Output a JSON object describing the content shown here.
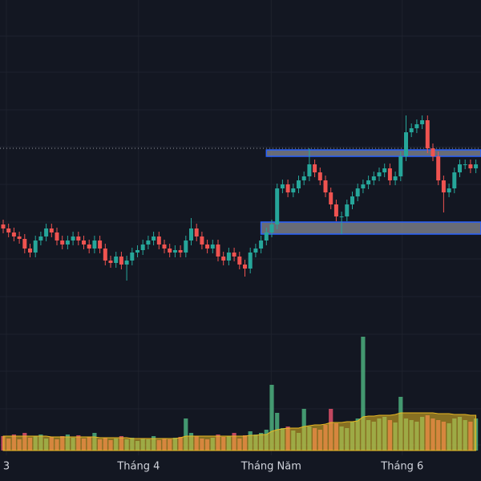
{
  "chart_data": {
    "type": "candlestick",
    "up_color": "#26a69a",
    "down_color": "#ef5350",
    "volume_up_color": "#4caf7e",
    "volume_down_color": "#e0506a",
    "volume_ma_color": "#e8b923",
    "zone_color": "#787b86",
    "zone_border_color": "#2962ff",
    "price_line_color": "#9598a1",
    "grid": true,
    "ylim": [
      0,
      600
    ],
    "yticks": [
      555,
      510,
      463,
      417,
      370,
      323,
      277,
      230,
      183,
      137,
      90,
      45
    ],
    "vlim": [
      0,
      200
    ],
    "x_labels": [
      {
        "index": 0.6,
        "label": "3"
      },
      {
        "index": 25.2,
        "label": "Tháng 4"
      },
      {
        "index": 49.9,
        "label": "Tháng Năm"
      },
      {
        "index": 74.3,
        "label": "Tháng 6"
      }
    ],
    "open": [
      320,
      315,
      310,
      305,
      302,
      290,
      285,
      300,
      305,
      315,
      310,
      300,
      295,
      300,
      305,
      300,
      295,
      290,
      300,
      290,
      275,
      272,
      280,
      270,
      275,
      285,
      288,
      295,
      300,
      305,
      295,
      290,
      285,
      288,
      285,
      300,
      315,
      305,
      295,
      290,
      295,
      280,
      275,
      285,
      280,
      270,
      265,
      285,
      290,
      300,
      310,
      320,
      365,
      370,
      360,
      365,
      375,
      380,
      395,
      385,
      375,
      360,
      345,
      330,
      330,
      345,
      355,
      365,
      370,
      375,
      380,
      385,
      390,
      375,
      380,
      405,
      435,
      440,
      445,
      450,
      415,
      405,
      375,
      360,
      365,
      385,
      395,
      395,
      390
    ],
    "high": [
      326,
      321,
      316,
      311,
      308,
      296,
      306,
      311,
      321,
      321,
      316,
      306,
      306,
      311,
      311,
      306,
      301,
      306,
      306,
      296,
      281,
      286,
      286,
      281,
      291,
      294,
      301,
      306,
      311,
      311,
      301,
      296,
      294,
      294,
      306,
      328,
      321,
      311,
      301,
      301,
      301,
      286,
      291,
      291,
      286,
      276,
      291,
      296,
      306,
      316,
      326,
      371,
      376,
      376,
      371,
      381,
      386,
      415,
      401,
      391,
      381,
      366,
      351,
      336,
      351,
      361,
      371,
      376,
      381,
      386,
      391,
      396,
      396,
      386,
      411,
      456,
      446,
      451,
      456,
      456,
      421,
      411,
      381,
      371,
      391,
      401,
      401,
      401,
      401
    ],
    "low": [
      309,
      304,
      299,
      296,
      284,
      279,
      279,
      294,
      299,
      304,
      294,
      289,
      289,
      294,
      294,
      289,
      284,
      284,
      284,
      269,
      266,
      266,
      264,
      250,
      269,
      279,
      282,
      289,
      294,
      289,
      284,
      279,
      279,
      279,
      279,
      294,
      299,
      289,
      284,
      284,
      274,
      269,
      269,
      274,
      264,
      255,
      259,
      279,
      284,
      294,
      304,
      314,
      359,
      354,
      354,
      359,
      369,
      374,
      379,
      369,
      354,
      339,
      324,
      308,
      324,
      339,
      349,
      359,
      364,
      369,
      374,
      379,
      369,
      369,
      374,
      399,
      429,
      434,
      439,
      409,
      399,
      369,
      335,
      354,
      359,
      379,
      389,
      384,
      384
    ],
    "close": [
      315,
      310,
      305,
      302,
      290,
      285,
      300,
      305,
      315,
      310,
      300,
      295,
      300,
      305,
      300,
      295,
      290,
      300,
      290,
      275,
      272,
      280,
      270,
      275,
      285,
      288,
      295,
      300,
      305,
      295,
      290,
      285,
      288,
      285,
      300,
      315,
      305,
      295,
      290,
      295,
      280,
      275,
      285,
      280,
      270,
      265,
      285,
      290,
      300,
      310,
      320,
      365,
      370,
      360,
      365,
      375,
      380,
      395,
      385,
      375,
      360,
      345,
      330,
      330,
      345,
      355,
      365,
      370,
      375,
      380,
      385,
      390,
      375,
      380,
      405,
      435,
      440,
      445,
      450,
      415,
      405,
      375,
      360,
      365,
      385,
      395,
      395,
      390,
      395
    ],
    "volume": [
      18,
      15,
      20,
      14,
      22,
      16,
      18,
      20,
      15,
      17,
      14,
      18,
      20,
      16,
      19,
      15,
      17,
      22,
      14,
      16,
      13,
      15,
      18,
      14,
      16,
      12,
      15,
      14,
      18,
      13,
      15,
      14,
      16,
      17,
      40,
      22,
      18,
      15,
      14,
      16,
      20,
      17,
      18,
      22,
      15,
      19,
      24,
      20,
      22,
      26,
      82,
      47,
      28,
      30,
      25,
      22,
      52,
      30,
      28,
      26,
      32,
      52,
      34,
      30,
      28,
      36,
      40,
      142,
      38,
      36,
      40,
      42,
      38,
      35,
      67,
      40,
      38,
      36,
      42,
      44,
      40,
      38,
      36,
      34,
      40,
      42,
      38,
      36,
      40
    ],
    "volume_ma": [
      18,
      18,
      18,
      18,
      18,
      18,
      18,
      18,
      18,
      17,
      17,
      17,
      17,
      17,
      17,
      17,
      17,
      17,
      16,
      16,
      16,
      16,
      16,
      16,
      15,
      15,
      15,
      15,
      15,
      15,
      15,
      15,
      15,
      16,
      18,
      18,
      18,
      18,
      18,
      18,
      18,
      18,
      18,
      18,
      18,
      18,
      19,
      19,
      20,
      20,
      24,
      26,
      27,
      28,
      28,
      28,
      30,
      31,
      32,
      32,
      33,
      35,
      35,
      35,
      36,
      36,
      37,
      42,
      43,
      43,
      44,
      44,
      44,
      45,
      47,
      47,
      47,
      47,
      47,
      47,
      47,
      46,
      46,
      46,
      45,
      45,
      45,
      44,
      44
    ],
    "zones": [
      {
        "start_index": 49,
        "from": 405,
        "to": 413
      },
      {
        "start_index": 48,
        "from": 308,
        "to": 323
      }
    ],
    "price_line": 415
  }
}
